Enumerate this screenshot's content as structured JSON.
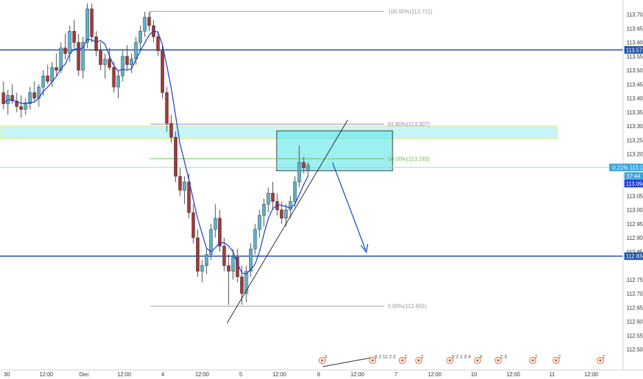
{
  "chart_data": {
    "type": "candlestick",
    "y_axis": {
      "ticks": [
        "113.700",
        "113.650",
        "113.600",
        "113.550",
        "113.500",
        "113.450",
        "113.400",
        "113.350",
        "113.300",
        "113.250",
        "113.200",
        "113.150",
        "113.050",
        "113.000",
        "112.950",
        "112.900",
        "112.850",
        "112.750",
        "112.700",
        "112.650",
        "112.600",
        "112.550",
        "112.500"
      ],
      "range": [
        112.49,
        113.74
      ]
    },
    "x_axis": {
      "ticks": [
        "30",
        "12:00",
        "Dec",
        "12:00",
        "4",
        "12:00",
        "5",
        "12:00",
        "6",
        "12:00",
        "7",
        "12:00",
        "10",
        "12:00",
        "11",
        "12:00"
      ]
    },
    "fibonacci": {
      "levels": [
        {
          "label": "100.00%(113.711)",
          "price": 113.711
        },
        {
          "label": "61.80%(113.307)",
          "price": 113.307
        },
        {
          "label": "50.00%(113.183)",
          "price": 113.183
        },
        {
          "label": "0.00%(112.655)",
          "price": 112.655
        }
      ]
    },
    "horizontal_lines": [
      {
        "label": "113.573",
        "price": 113.573
      },
      {
        "label": "112.834",
        "price": 112.834
      }
    ],
    "price_badges": [
      {
        "label": "-0.21%",
        "price_label": "113.152",
        "price": 113.152
      },
      {
        "label": "37:44",
        "price": 113.131
      },
      {
        "label": "113.094",
        "price": 113.094
      }
    ],
    "zones": [
      {
        "name": "resistance band",
        "from": 113.255,
        "to": 113.3
      },
      {
        "name": "sell box",
        "from": 113.14,
        "to": 113.283
      }
    ],
    "event_markers": [
      "3",
      "8 2 11 2 2",
      "2",
      "2",
      "5 2 1 3 4",
      "4",
      "2 3",
      "2",
      "2",
      "2"
    ],
    "colors": {
      "up": "#5bb3cc",
      "down": "#a33a3a",
      "hline": "#2154a8",
      "fib_100": "#999999",
      "fib_618": "#9c7bb8",
      "fib_50": "#6cc04a",
      "fib_0": "#999999",
      "ma": "#1f3fd1",
      "zone": "#5ce6ea"
    }
  }
}
